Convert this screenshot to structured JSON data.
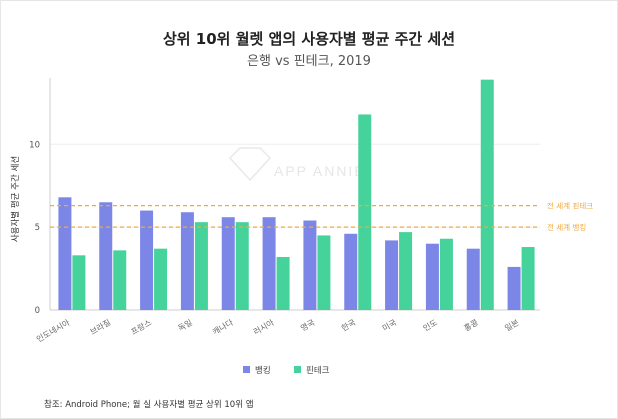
{
  "title": "상위 10위 월렛 앱의 사용자별 평균 주간 세션",
  "subtitle": "은행 vs 핀테크, 2019",
  "footnote": "참조: Android Phone; 월 실 사용자별 평균 상위 10위 앱",
  "watermark": "APP ANNIE",
  "chart_data": {
    "type": "bar",
    "categories": [
      "인도네시아",
      "브라질",
      "프랑스",
      "독일",
      "캐나다",
      "러시아",
      "영국",
      "한국",
      "미국",
      "인도",
      "홍콩",
      "일본"
    ],
    "series": [
      {
        "name": "뱅킹",
        "color": "#7b86e6",
        "values": [
          6.8,
          6.5,
          6.0,
          5.9,
          5.6,
          5.6,
          5.4,
          4.6,
          4.2,
          4.0,
          3.7,
          2.6
        ]
      },
      {
        "name": "핀테크",
        "color": "#45d29b",
        "values": [
          3.3,
          3.6,
          3.7,
          5.3,
          5.3,
          3.2,
          4.5,
          11.8,
          4.7,
          4.3,
          13.9,
          3.8
        ]
      }
    ],
    "ylabel": "사용자별 평균 주간 세션",
    "xlabel": "",
    "ylim": [
      0,
      14
    ],
    "yticks": [
      0,
      5,
      10
    ],
    "reference_lines": [
      {
        "label": "전 세계 핀테크",
        "value": 6.3,
        "color": "#f2a93b"
      },
      {
        "label": "전 세계 뱅킹",
        "value": 5.0,
        "color": "#f2a93b"
      }
    ],
    "grid": true,
    "legend": "bottom"
  }
}
